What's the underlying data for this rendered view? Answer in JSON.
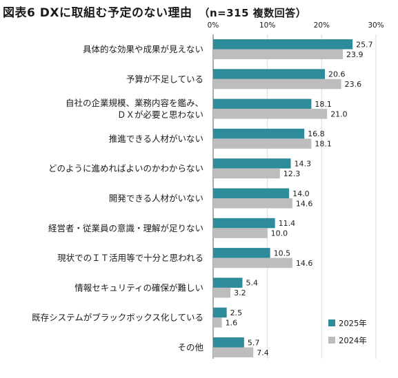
{
  "title": "図表6 DXに取組む予定のない理由",
  "subtitle": "（n=315 複数回答）",
  "colors": {
    "2025": "#2e8b9a",
    "2024": "#bdbdbd"
  },
  "chart_data": {
    "type": "bar",
    "orientation": "horizontal",
    "categories": [
      [
        "具体的な効果や成果が見えない"
      ],
      [
        "予算が不足している"
      ],
      [
        "自社の企業規模、業務内容を鑑み、",
        "ＤＸが必要と思わない"
      ],
      [
        "推進できる人材がいない"
      ],
      [
        "どのように進めればよいのかわからない"
      ],
      [
        "開発できる人材がいない"
      ],
      [
        "経営者・従業員の意識・理解が足りない"
      ],
      [
        "現状でのＩＴ活用等で十分と思われる"
      ],
      [
        "情報セキュリティの確保が難しい"
      ],
      [
        "既存システムがブラックボックス化している"
      ],
      [
        "その他"
      ]
    ],
    "series": [
      {
        "name": "2025年",
        "values": [
          25.7,
          20.6,
          18.1,
          16.8,
          14.3,
          14.0,
          11.4,
          10.5,
          5.4,
          2.5,
          5.7
        ]
      },
      {
        "name": "2024年",
        "values": [
          23.9,
          23.6,
          21.0,
          18.1,
          12.3,
          14.6,
          10.0,
          14.6,
          3.2,
          1.6,
          7.4
        ]
      }
    ],
    "xlim": [
      0,
      30
    ],
    "xticks": [
      "0%",
      "10%",
      "20%",
      "30%"
    ],
    "grid": true,
    "legend_position": "bottom-right"
  }
}
